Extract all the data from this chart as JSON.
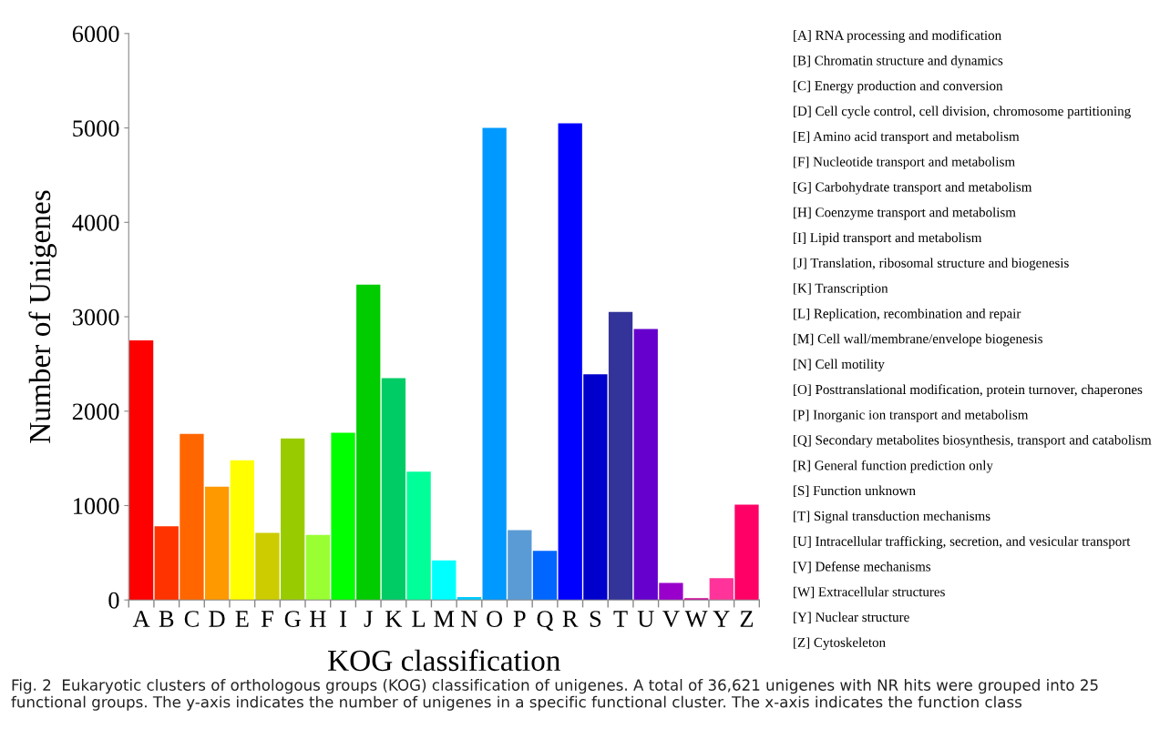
{
  "chart_data": {
    "type": "bar",
    "xlabel": "KOG classification",
    "ylabel": "Number of Unigenes",
    "categories": [
      "A",
      "B",
      "C",
      "D",
      "E",
      "F",
      "G",
      "H",
      "I",
      "J",
      "K",
      "L",
      "M",
      "N",
      "O",
      "P",
      "Q",
      "R",
      "S",
      "T",
      "U",
      "V",
      "W",
      "Y",
      "Z"
    ],
    "values": [
      2750,
      780,
      1760,
      1200,
      1480,
      710,
      1710,
      690,
      1770,
      3340,
      2350,
      1360,
      420,
      30,
      5000,
      740,
      520,
      5050,
      2390,
      3050,
      2870,
      180,
      20,
      230,
      1010
    ],
    "colors": [
      "#ff0000",
      "#ff3300",
      "#ff6600",
      "#ff9900",
      "#ffff00",
      "#cccc00",
      "#99cc00",
      "#99ff33",
      "#00ff00",
      "#00cc00",
      "#00cc66",
      "#00ff99",
      "#00ffff",
      "#00ccff",
      "#0099ff",
      "#5b9bd5",
      "#0066ff",
      "#0000ff",
      "#0000cc",
      "#333399",
      "#6600cc",
      "#9900cc",
      "#cc0099",
      "#ff3399",
      "#ff0066"
    ],
    "ylim": [
      0,
      6000
    ],
    "yticks": [
      0,
      1000,
      2000,
      3000,
      4000,
      5000,
      6000
    ],
    "grid": false,
    "legend": false,
    "annotations": [
      "[A] RNA processing and modification",
      "[B] Chromatin structure and dynamics",
      "[C] Energy production and conversion",
      "[D] Cell cycle control, cell division, chromosome partitioning",
      "[E] Amino acid transport and metabolism",
      "[F] Nucleotide transport and metabolism",
      "[G] Carbohydrate transport and metabolism",
      "[H] Coenzyme transport and metabolism",
      "[I] Lipid transport and metabolism",
      "[J] Translation, ribosomal structure and biogenesis",
      "[K] Transcription",
      "[L] Replication, recombination and repair",
      "[M] Cell wall/membrane/envelope biogenesis",
      "[N] Cell motility",
      "[O] Posttranslational modification, protein turnover, chaperones",
      "[P] Inorganic ion transport and metabolism",
      "[Q] Secondary metabolites biosynthesis, transport and catabolism",
      "[R] General function prediction only",
      "[S] Function unknown",
      "[T] Signal transduction mechanisms",
      "[U] Intracellular trafficking, secretion, and vesicular transport",
      "[V] Defense mechanisms",
      "[W] Extracellular structures",
      "[Y] Nuclear structure",
      "[Z] Cytoskeleton",
      "Fig. 2  Eukaryotic clusters of orthologous groups (KOG) classification of unigenes. A total of 36,621 unigenes with NR hits were grouped into 25 functional groups. The y-axis indicates the number of unigenes in a specific functional cluster. The x-axis indicates the function class"
    ]
  }
}
